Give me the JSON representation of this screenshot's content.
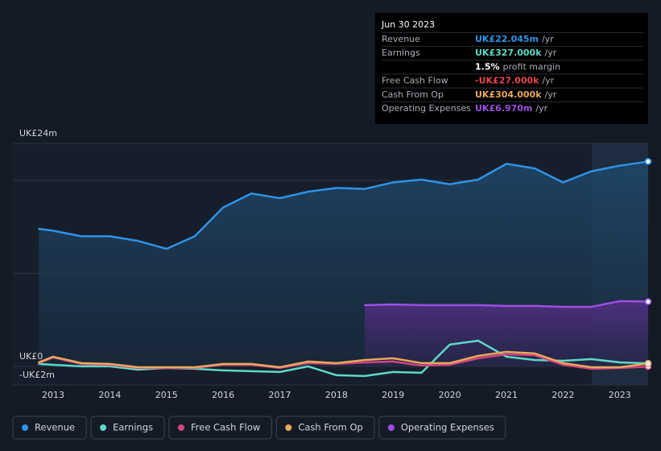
{
  "chart_data": {
    "type": "line",
    "x": [
      2012.75,
      2013,
      2013.5,
      2014,
      2014.5,
      2015,
      2015.5,
      2016,
      2016.5,
      2017,
      2017.5,
      2018,
      2018.5,
      2019,
      2019.5,
      2020,
      2020.5,
      2021,
      2021.5,
      2022,
      2022.5,
      2023,
      2023.5
    ],
    "xlim": [
      2012.29,
      2023.5
    ],
    "xticks": [
      2013,
      2014,
      2015,
      2016,
      2017,
      2018,
      2019,
      2020,
      2021,
      2022,
      2023
    ],
    "ylim": [
      -2,
      24
    ],
    "yticks": [
      {
        "value": -2,
        "label": "-UK£2m"
      },
      {
        "value": 0,
        "label": "UK£0"
      },
      {
        "value": 10,
        "label": null
      },
      {
        "value": 20,
        "label": null
      },
      {
        "value": 24,
        "label": "UK£24m"
      }
    ],
    "grid": true,
    "series": [
      {
        "name": "Revenue",
        "color": "#2e93e6",
        "area": true,
        "values": [
          14.8,
          14.6,
          14.0,
          14.0,
          13.5,
          12.65,
          14.0,
          17.1,
          18.6,
          18.1,
          18.8,
          19.2,
          19.1,
          19.8,
          20.1,
          19.6,
          20.1,
          21.8,
          21.3,
          19.8,
          21.0,
          21.6,
          22.045
        ]
      },
      {
        "name": "Earnings",
        "color": "#5dd9c8",
        "area": false,
        "values": [
          0.26,
          0.17,
          0,
          0,
          -0.35,
          -0.17,
          -0.26,
          -0.43,
          -0.52,
          -0.6,
          0,
          -0.95,
          -1.04,
          -0.6,
          -0.69,
          2.34,
          2.77,
          1.04,
          0.69,
          0.6,
          0.78,
          0.43,
          0.327
        ]
      },
      {
        "name": "Free Cash Flow",
        "color": "#d0457f",
        "area": false,
        "values": [
          0.35,
          0.95,
          0.26,
          0.17,
          -0.17,
          -0.17,
          -0.17,
          0.17,
          0.17,
          -0.17,
          0.35,
          0.26,
          0.43,
          0.52,
          0.09,
          0.17,
          0.87,
          1.3,
          1.2,
          0.17,
          -0.26,
          -0.17,
          -0.027
        ]
      },
      {
        "name": "Cash From Op",
        "color": "#e8a85c",
        "area": false,
        "values": [
          0.43,
          1.04,
          0.35,
          0.26,
          -0.09,
          -0.09,
          -0.09,
          0.26,
          0.26,
          -0.09,
          0.52,
          0.35,
          0.69,
          0.87,
          0.35,
          0.35,
          1.13,
          1.56,
          1.39,
          0.35,
          -0.09,
          -0.09,
          0.304
        ]
      },
      {
        "name": "Operating Expenses",
        "color": "#9d4fe3",
        "area": true,
        "values": [
          null,
          null,
          null,
          null,
          null,
          null,
          null,
          null,
          null,
          null,
          null,
          null,
          6.59,
          6.67,
          6.59,
          6.59,
          6.59,
          6.5,
          6.5,
          6.41,
          6.41,
          7.02,
          6.97
        ]
      }
    ],
    "tooltip": {
      "date": "Jun 30 2023",
      "rows": [
        {
          "label": "Revenue",
          "value": "UK£22.045m",
          "unit": "/yr",
          "color": "#2e93e6"
        },
        {
          "label": "Earnings",
          "value": "UK£327.000k",
          "unit": "/yr",
          "color": "#5dd9c8"
        },
        {
          "label": null,
          "value": "1.5%",
          "unit": "profit margin",
          "color": "#ffffff"
        },
        {
          "label": "Free Cash Flow",
          "value": "-UK£27.000k",
          "unit": "/yr",
          "color": "#e8464b"
        },
        {
          "label": "Cash From Op",
          "value": "UK£304.000k",
          "unit": "/yr",
          "color": "#e8a85c"
        },
        {
          "label": "Operating Expenses",
          "value": "UK£6.970m",
          "unit": "/yr",
          "color": "#9d4fe3"
        }
      ]
    }
  }
}
